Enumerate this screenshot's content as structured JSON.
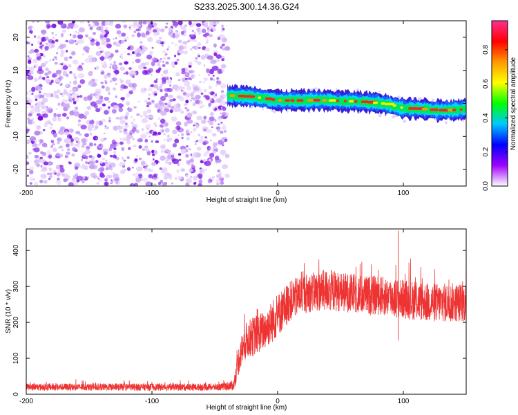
{
  "title": "S233.2025.300.14.36.G24",
  "chart_data": [
    {
      "type": "heatmap",
      "xlabel": "Height of straight line (km)",
      "ylabel": "Frequency (Hz)",
      "xlim": [
        -200,
        150
      ],
      "ylim": [
        -25,
        25
      ],
      "xticks": [
        -200,
        -100,
        0,
        100
      ],
      "yticks": [
        -20,
        -10,
        0,
        10,
        20
      ],
      "grid": false,
      "regions": {
        "noise_x_range": [
          -200,
          -40
        ],
        "signal_x_range": [
          -40,
          150
        ]
      },
      "signal_ridge": {
        "x": [
          -40,
          -30,
          -20,
          -10,
          0,
          10,
          20,
          30,
          40,
          50,
          60,
          70,
          80,
          90,
          100,
          110,
          120,
          130,
          140,
          150
        ],
        "frequency": [
          2.4,
          2.2,
          2.0,
          1.4,
          0.9,
          0.9,
          0.9,
          1.0,
          0.9,
          0.7,
          0.6,
          0.4,
          0.1,
          -0.5,
          -1.5,
          -1.6,
          -1.9,
          -2.1,
          -2.0,
          -1.7
        ]
      },
      "colorbar": {
        "label": "Normalized spectral amplitude",
        "min": 0.0,
        "max": 0.97,
        "ticks": [
          0.0,
          0.2,
          0.4,
          0.6,
          0.8
        ],
        "tick_labels": [
          "0.0",
          "0.2",
          "0.4",
          "0.6",
          "0.8"
        ],
        "colors": [
          "#ffffff",
          "#a000ff",
          "#0000ff",
          "#00c8ff",
          "#00ff00",
          "#ffff00",
          "#ff9900",
          "#ff0000",
          "#ff3090"
        ]
      }
    },
    {
      "type": "line",
      "xlabel": "Height of straight line (km)",
      "ylabel": "SNR (10 * v/v)",
      "xlim": [
        -200,
        150
      ],
      "ylim": [
        0,
        460
      ],
      "xticks": [
        -200,
        -100,
        0,
        100
      ],
      "yticks": [
        0,
        100,
        200,
        300,
        400
      ],
      "grid": false,
      "color": "#ee3333",
      "series": [
        {
          "x": [
            -200,
            -180,
            -160,
            -140,
            -120,
            -100,
            -80,
            -60,
            -45,
            -35,
            -30,
            -25,
            -20,
            -15,
            -10,
            -5,
            0,
            5,
            10,
            15,
            20,
            30,
            40,
            50,
            60,
            70,
            80,
            90,
            100,
            110,
            120,
            130,
            140,
            150
          ],
          "mean": [
            20,
            20,
            20,
            20,
            20,
            20,
            20,
            20,
            20,
            25,
            110,
            150,
            160,
            170,
            180,
            200,
            220,
            240,
            260,
            270,
            280,
            285,
            290,
            285,
            280,
            275,
            275,
            270,
            265,
            260,
            255,
            255,
            255,
            255
          ],
          "spread": [
            10,
            10,
            10,
            10,
            10,
            10,
            10,
            10,
            10,
            15,
            45,
            50,
            55,
            55,
            55,
            60,
            60,
            60,
            55,
            55,
            55,
            55,
            60,
            55,
            55,
            55,
            55,
            55,
            55,
            55,
            55,
            55,
            55,
            55
          ]
        }
      ],
      "annotations": [
        {
          "x": 96,
          "y": 455,
          "note": "peak spike"
        }
      ]
    }
  ]
}
